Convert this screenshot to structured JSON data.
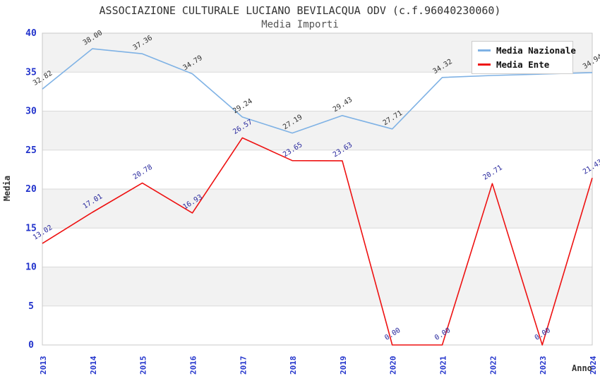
{
  "chart_data": {
    "type": "line",
    "title": "ASSOCIAZIONE CULTURALE LUCIANO BEVILACQUA ODV (c.f.96040230060)",
    "subtitle": "Media Importi",
    "xlabel": "Anno",
    "ylabel": "Media",
    "categories": [
      "2013",
      "2014",
      "2015",
      "2016",
      "2017",
      "2018",
      "2019",
      "2020",
      "2021",
      "2022",
      "2023",
      "2024"
    ],
    "ylim": [
      0,
      40
    ],
    "ytick_step": 5,
    "grid": "horizontal-gridlines-with-alternating-bands",
    "legend_position": "top-right",
    "series": [
      {
        "name": "Media Nazionale",
        "color": "#7fb2e5",
        "label_color": "#333333",
        "values": [
          32.82,
          38.0,
          37.36,
          34.79,
          29.24,
          27.19,
          29.43,
          27.71,
          34.32,
          34.57,
          34.75,
          34.94
        ],
        "labels": [
          "32.82",
          "38.00",
          "37.36",
          "34.79",
          "29.24",
          "27.19",
          "29.43",
          "27.71",
          "34.32",
          "",
          "",
          "34.94"
        ]
      },
      {
        "name": "Media Ente",
        "color": "#ee1111",
        "label_color": "#2a2a9e",
        "values": [
          13.02,
          17.01,
          20.78,
          16.93,
          26.57,
          23.65,
          23.63,
          0.0,
          0.0,
          20.71,
          0.0,
          21.43
        ],
        "labels": [
          "13.02",
          "17.01",
          "20.78",
          "16.93",
          "26.57",
          "23.65",
          "23.63",
          "0.00",
          "0.00",
          "20.71",
          "0.00",
          "21.43"
        ]
      }
    ],
    "style_colors": {
      "axis_tick_label": "#2233cc",
      "band_fill": "#f2f2f2",
      "gridline": "#d9d9d9",
      "plot_border": "#c8c8c8",
      "title": "#333333",
      "subtitle": "#555555",
      "axis_title": "#333333"
    }
  }
}
